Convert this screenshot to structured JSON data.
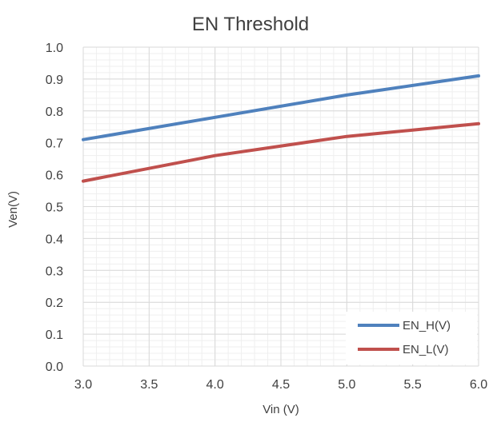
{
  "chart_data": {
    "type": "line",
    "title": "EN Threshold",
    "xlabel": "Vin (V)",
    "ylabel": "Ven(V)",
    "xlim": [
      3.0,
      6.0
    ],
    "ylim": [
      0.0,
      1.0
    ],
    "x_ticks": [
      "3.0",
      "3.5",
      "4.0",
      "4.5",
      "5.0",
      "5.5",
      "6.0"
    ],
    "y_ticks": [
      "0.0",
      "0.1",
      "0.2",
      "0.3",
      "0.4",
      "0.5",
      "0.6",
      "0.7",
      "0.8",
      "0.9",
      "1.0"
    ],
    "grid": "on",
    "legend_position": "bottom-right",
    "series": [
      {
        "name": "EN_H(V)",
        "color": "#4f81bd",
        "points": [
          [
            3.0,
            0.71
          ],
          [
            4.0,
            0.78
          ],
          [
            5.0,
            0.85
          ],
          [
            6.0,
            0.91
          ]
        ]
      },
      {
        "name": "EN_L(V)",
        "color": "#c0504d",
        "points": [
          [
            3.0,
            0.58
          ],
          [
            4.0,
            0.66
          ],
          [
            5.0,
            0.72
          ],
          [
            6.0,
            0.76
          ]
        ]
      }
    ]
  }
}
